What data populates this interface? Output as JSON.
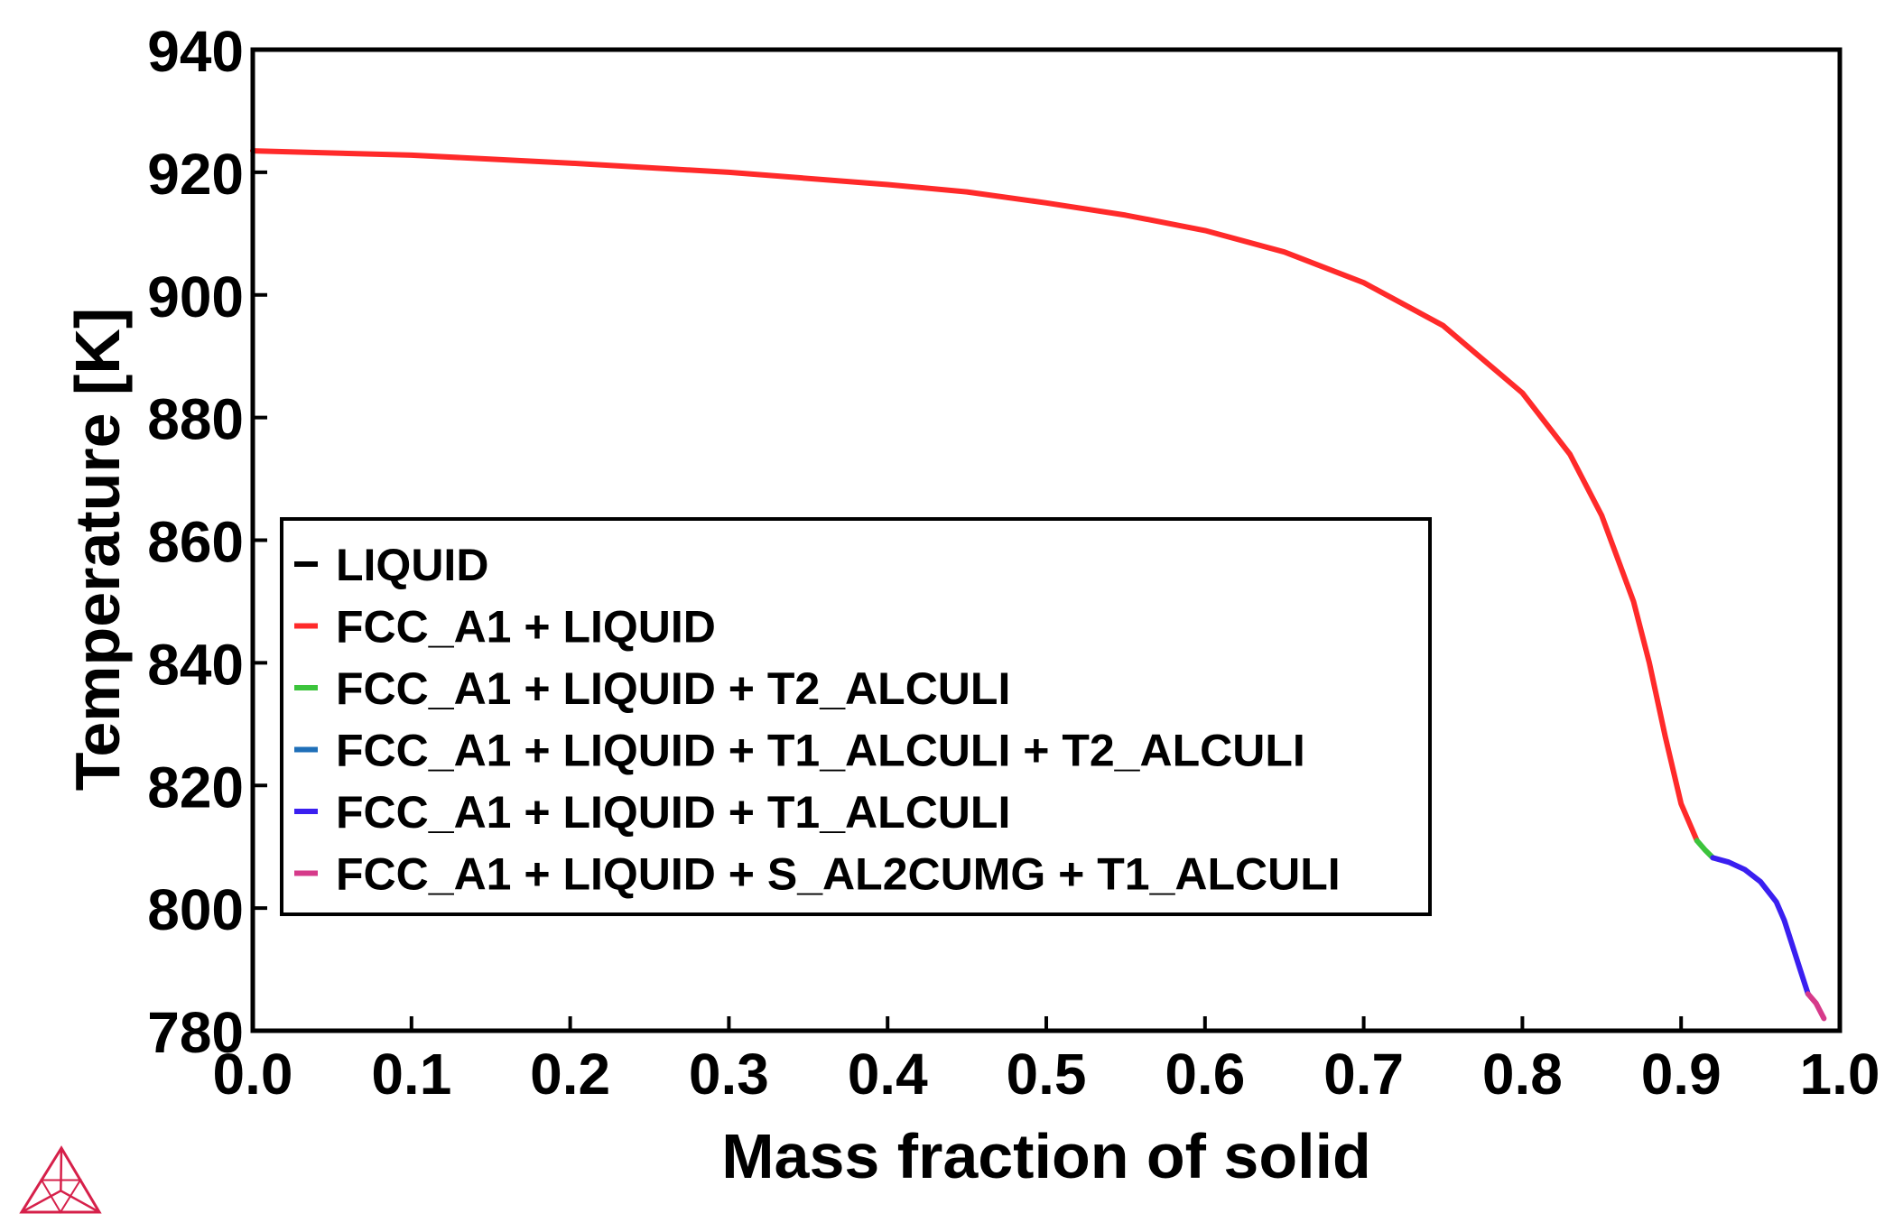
{
  "chart_data": {
    "type": "line",
    "title": "",
    "xlabel": "Mass fraction of solid",
    "ylabel": "Temperature [K]",
    "xlim": [
      0.0,
      1.0
    ],
    "ylim": [
      780,
      940
    ],
    "xticks": [
      "0.0",
      "0.1",
      "0.2",
      "0.3",
      "0.4",
      "0.5",
      "0.6",
      "0.7",
      "0.8",
      "0.9",
      "1.0"
    ],
    "yticks": [
      "780",
      "800",
      "820",
      "840",
      "860",
      "880",
      "900",
      "920",
      "940"
    ],
    "grid": false,
    "legend_position": "center-left",
    "series": [
      {
        "name": "LIQUID",
        "color": "#000000",
        "x": [],
        "y": []
      },
      {
        "name": "FCC_A1 + LIQUID",
        "color": "#ff2a2a",
        "x": [
          0.0,
          0.1,
          0.2,
          0.3,
          0.4,
          0.45,
          0.5,
          0.55,
          0.6,
          0.65,
          0.7,
          0.75,
          0.8,
          0.83,
          0.85,
          0.87,
          0.88,
          0.89,
          0.9,
          0.91
        ],
        "y": [
          923.5,
          922.8,
          921.5,
          920.0,
          918.0,
          916.8,
          915.0,
          913.0,
          910.5,
          907.0,
          902.0,
          895.0,
          884.0,
          874.0,
          864.0,
          850.0,
          840.0,
          828.0,
          817.0,
          811.0
        ]
      },
      {
        "name": "FCC_A1 + LIQUID + T2_ALCULI",
        "color": "#3cc43c",
        "x": [
          0.91,
          0.915,
          0.92
        ],
        "y": [
          811.0,
          809.5,
          808.2
        ]
      },
      {
        "name": "FCC_A1 + LIQUID + T1_ALCULI + T2_ALCULI",
        "color": "#1f6fb8",
        "x": [],
        "y": []
      },
      {
        "name": "FCC_A1 + LIQUID + T1_ALCULI",
        "color": "#3a1ff0",
        "x": [
          0.92,
          0.93,
          0.94,
          0.95,
          0.96,
          0.965,
          0.97,
          0.975,
          0.98
        ],
        "y": [
          808.2,
          807.5,
          806.3,
          804.3,
          801.0,
          798.0,
          794.0,
          790.0,
          786.0
        ]
      },
      {
        "name": "FCC_A1 + LIQUID + S_AL2CUMG + T1_ALCULI",
        "color": "#d63a8a",
        "x": [
          0.98,
          0.985,
          0.99
        ],
        "y": [
          786.0,
          784.5,
          782.0
        ]
      }
    ]
  },
  "logo": {
    "name": "thermo-calc-logo",
    "color": "#d6204a"
  }
}
